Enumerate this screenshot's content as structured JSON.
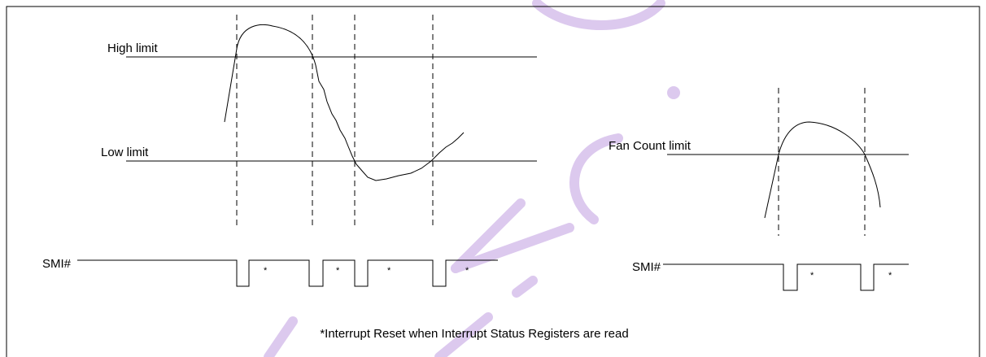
{
  "labels": {
    "high_limit": "High limit",
    "low_limit": "Low limit",
    "fan_count_limit": "Fan Count limit",
    "smi_left": "SMI#",
    "smi_right": "SMI#"
  },
  "markers": {
    "left": [
      "*",
      "*",
      "*",
      "*"
    ],
    "right": [
      "*",
      "*"
    ]
  },
  "caption": "*Interrupt Reset when Interrupt Status Registers are read"
}
